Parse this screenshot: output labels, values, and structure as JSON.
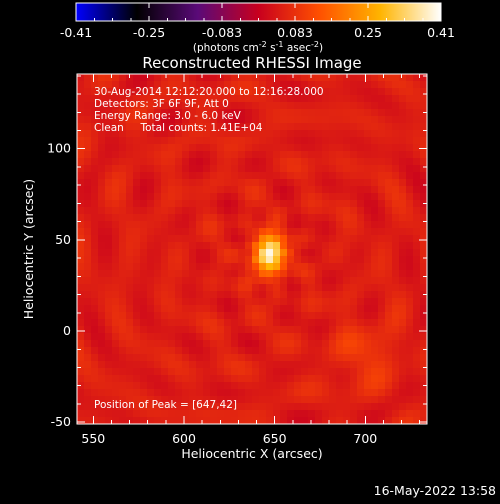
{
  "chart_data": {
    "type": "heatmap",
    "title": "Reconstructed RHESSI Image",
    "xlabel": "Heliocentric X (arcsec)",
    "ylabel": "Heliocentric Y (arcsec)",
    "xlim": [
      541,
      734
    ],
    "ylim": [
      -51,
      141
    ],
    "x_ticks": [
      550,
      600,
      650,
      700
    ],
    "y_ticks": [
      -50,
      0,
      50,
      100
    ],
    "colorbar": {
      "colormap": "black-purple-red-orange-yellow-white",
      "range": [
        -0.41,
        0.41
      ],
      "tick_labels": [
        "-0.41",
        "-0.25",
        "-0.083",
        "0.083",
        "0.25",
        "0.41"
      ],
      "unit_parts": [
        "(photons cm",
        "-2",
        " s",
        "-1",
        " asec",
        "-2",
        ")"
      ]
    },
    "annotations": [
      "30-Aug-2014 12:12:20.000 to 12:16:28.000",
      "Detectors: 3F 6F 9F, Att 0",
      "Energy Range: 3.0 - 6.0 keV",
      "Clean     Total counts: 1.41E+04"
    ],
    "peak_label": "Position of Peak = [647,42]",
    "peak": {
      "x": 647,
      "y": 42,
      "value": 0.41
    },
    "sources": [
      {
        "x": 647,
        "y": 42,
        "amplitude": 0.41
      },
      {
        "x": 700,
        "y": -13,
        "amplitude": 0.05
      }
    ]
  },
  "footer": {
    "timestamp": "16-May-2022 13:58"
  },
  "colors": {
    "background": "#000000",
    "foreground": "#ffffff",
    "colormap_stops": [
      "#0000ff",
      "#000000",
      "#5a0a78",
      "#c8001e",
      "#ff5000",
      "#ffb400",
      "#ffffff"
    ]
  }
}
